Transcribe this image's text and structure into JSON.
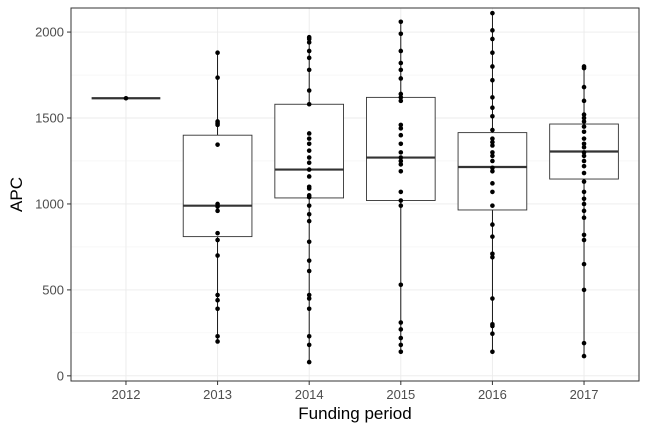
{
  "chart_data": {
    "type": "box",
    "title": "",
    "xlabel": "Funding period",
    "ylabel": "APC",
    "ylim": [
      -30,
      2140
    ],
    "yticks": [
      0,
      500,
      1000,
      1500,
      2000
    ],
    "ytick_labels": [
      "0",
      "500",
      "1000",
      "1500",
      "2000"
    ],
    "categories": [
      "2012",
      "2013",
      "2014",
      "2015",
      "2016",
      "2017"
    ],
    "grid": true,
    "legend": "none",
    "boxes": [
      {
        "category": "2012",
        "whisker_low": 1615,
        "q1": 1615,
        "median": 1615,
        "q3": 1615,
        "whisker_high": 1615
      },
      {
        "category": "2013",
        "whisker_low": 200,
        "q1": 810,
        "median": 990,
        "q3": 1400,
        "whisker_high": 1880
      },
      {
        "category": "2014",
        "whisker_low": 80,
        "q1": 1035,
        "median": 1200,
        "q3": 1580,
        "whisker_high": 1970
      },
      {
        "category": "2015",
        "whisker_low": 140,
        "q1": 1020,
        "median": 1270,
        "q3": 1620,
        "whisker_high": 2060
      },
      {
        "category": "2016",
        "whisker_low": 140,
        "q1": 965,
        "median": 1215,
        "q3": 1415,
        "whisker_high": 2110
      },
      {
        "category": "2017",
        "whisker_low": 115,
        "q1": 1145,
        "median": 1305,
        "q3": 1465,
        "whisker_high": 1800
      }
    ],
    "points": [
      {
        "category": "2012",
        "values": [
          1615
        ]
      },
      {
        "category": "2013",
        "values": [
          1880,
          1735,
          1480,
          1470,
          1460,
          1345,
          1000,
          985,
          960,
          830,
          790,
          700,
          470,
          440,
          390,
          230,
          200
        ]
      },
      {
        "category": "2014",
        "values": [
          1970,
          1960,
          1940,
          1890,
          1850,
          1780,
          1660,
          1580,
          1410,
          1380,
          1350,
          1310,
          1270,
          1240,
          1200,
          1160,
          1100,
          1090,
          1050,
          1040,
          990,
          940,
          900,
          780,
          670,
          610,
          470,
          450,
          390,
          230,
          180,
          80
        ]
      },
      {
        "category": "2015",
        "values": [
          2060,
          1990,
          1890,
          1820,
          1780,
          1730,
          1640,
          1620,
          1600,
          1460,
          1440,
          1400,
          1350,
          1300,
          1270,
          1250,
          1230,
          1190,
          1070,
          1020,
          990,
          530,
          310,
          270,
          220,
          180,
          140
        ]
      },
      {
        "category": "2016",
        "values": [
          2110,
          2010,
          1960,
          1880,
          1800,
          1720,
          1620,
          1560,
          1510,
          1430,
          1380,
          1360,
          1340,
          1300,
          1280,
          1250,
          1210,
          1190,
          1120,
          1070,
          990,
          880,
          810,
          710,
          690,
          450,
          300,
          290,
          245,
          140
        ]
      },
      {
        "category": "2017",
        "values": [
          1800,
          1790,
          1680,
          1600,
          1520,
          1500,
          1480,
          1450,
          1420,
          1380,
          1350,
          1330,
          1300,
          1280,
          1250,
          1220,
          1180,
          1130,
          1070,
          1030,
          1000,
          960,
          920,
          820,
          790,
          650,
          500,
          190,
          115
        ]
      }
    ]
  }
}
